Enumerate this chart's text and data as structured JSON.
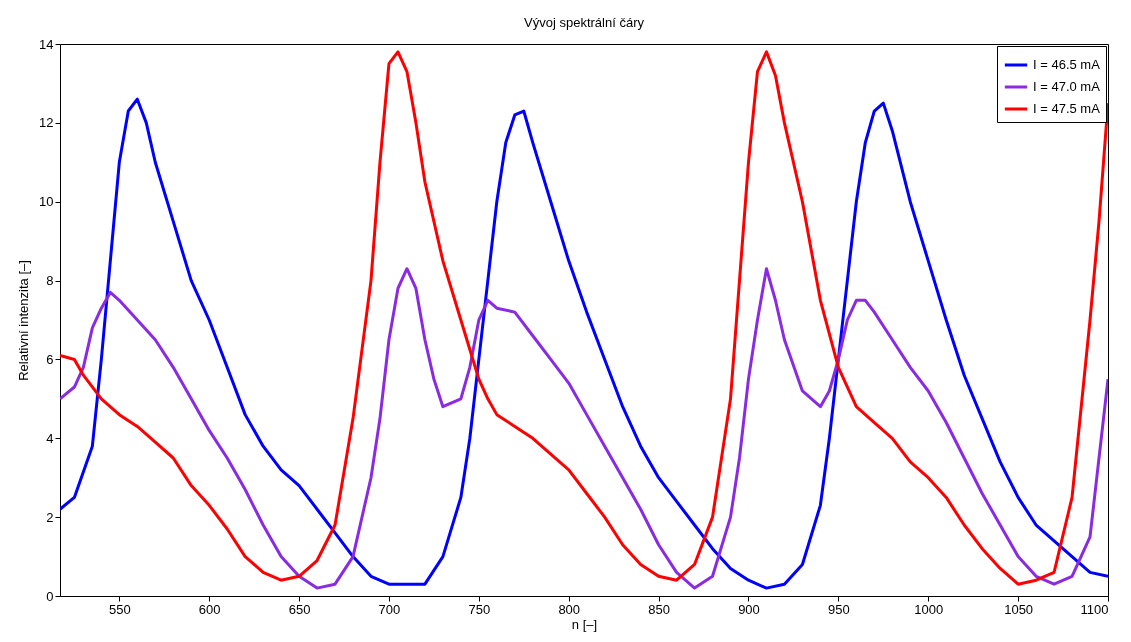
{
  "chart_data": {
    "type": "line",
    "title": "Vývoj spektrální čáry",
    "xlabel": "n [–]",
    "ylabel": "Relativní intenzita [–]",
    "xlim": [
      517,
      1100
    ],
    "ylim": [
      0,
      14
    ],
    "xticks": [
      550,
      600,
      650,
      700,
      750,
      800,
      850,
      900,
      950,
      1000,
      1050,
      1100
    ],
    "yticks": [
      0,
      2,
      4,
      6,
      8,
      10,
      12,
      14
    ],
    "legend": "top right",
    "line_style": "solid",
    "series": [
      {
        "name": "I = 46.5 mA",
        "color": "#0000ff",
        "x": [
          517,
          525,
          535,
          540,
          545,
          550,
          555,
          560,
          565,
          570,
          580,
          590,
          600,
          610,
          620,
          630,
          640,
          650,
          660,
          670,
          680,
          690,
          700,
          710,
          720,
          730,
          740,
          745,
          750,
          755,
          760,
          765,
          770,
          775,
          780,
          790,
          800,
          810,
          820,
          830,
          840,
          850,
          860,
          870,
          880,
          890,
          900,
          910,
          920,
          930,
          940,
          945,
          950,
          955,
          960,
          965,
          970,
          975,
          980,
          990,
          1000,
          1010,
          1020,
          1030,
          1040,
          1050,
          1060,
          1070,
          1080,
          1090,
          1100
        ],
        "values": [
          2.2,
          2.5,
          3.8,
          6,
          8.5,
          11,
          12.3,
          12.6,
          12,
          11,
          9.5,
          8,
          7,
          5.8,
          4.6,
          3.8,
          3.2,
          2.8,
          2.2,
          1.6,
          1.0,
          0.5,
          0.3,
          0.3,
          0.3,
          1,
          2.5,
          4,
          6,
          8,
          10,
          11.5,
          12.2,
          12.3,
          11.5,
          10,
          8.5,
          7.2,
          6,
          4.8,
          3.8,
          3,
          2.4,
          1.8,
          1.2,
          0.7,
          0.4,
          0.2,
          0.3,
          0.8,
          2.3,
          4,
          6,
          8,
          10,
          11.5,
          12.3,
          12.5,
          11.8,
          10,
          8.5,
          7,
          5.6,
          4.5,
          3.4,
          2.5,
          1.8,
          1.4,
          1.0,
          0.6,
          0.5
        ]
      },
      {
        "name": "I = 47.0 mA",
        "color": "#8a2be2",
        "x": [
          517,
          525,
          530,
          535,
          540,
          545,
          550,
          560,
          570,
          580,
          590,
          600,
          610,
          620,
          630,
          640,
          650,
          660,
          670,
          680,
          690,
          695,
          700,
          705,
          710,
          715,
          720,
          725,
          730,
          740,
          745,
          750,
          755,
          760,
          770,
          780,
          790,
          800,
          810,
          820,
          830,
          840,
          850,
          860,
          870,
          880,
          890,
          895,
          900,
          905,
          910,
          915,
          920,
          930,
          940,
          945,
          950,
          955,
          960,
          965,
          970,
          980,
          990,
          1000,
          1010,
          1020,
          1030,
          1040,
          1050,
          1060,
          1070,
          1080,
          1090,
          1100
        ],
        "values": [
          5.0,
          5.3,
          5.8,
          6.8,
          7.3,
          7.7,
          7.5,
          7,
          6.5,
          5.8,
          5,
          4.2,
          3.5,
          2.7,
          1.8,
          1.0,
          0.5,
          0.2,
          0.3,
          1,
          3,
          4.5,
          6.5,
          7.8,
          8.3,
          7.8,
          6.5,
          5.5,
          4.8,
          5,
          5.8,
          7,
          7.5,
          7.3,
          7.2,
          6.6,
          6,
          5.4,
          4.6,
          3.8,
          3,
          2.2,
          1.3,
          0.6,
          0.2,
          0.5,
          2,
          3.5,
          5.5,
          7,
          8.3,
          7.5,
          6.5,
          5.2,
          4.8,
          5.2,
          6,
          7,
          7.5,
          7.5,
          7.2,
          6.5,
          5.8,
          5.2,
          4.4,
          3.5,
          2.6,
          1.8,
          1,
          0.5,
          0.3,
          0.5,
          1.5,
          5.5
        ]
      },
      {
        "name": "I = 47.5 mA",
        "color": "#ff0000",
        "x": [
          517,
          525,
          530,
          540,
          550,
          560,
          570,
          580,
          590,
          600,
          610,
          620,
          630,
          640,
          650,
          660,
          670,
          680,
          690,
          695,
          700,
          705,
          710,
          715,
          720,
          730,
          740,
          750,
          755,
          760,
          770,
          780,
          790,
          800,
          810,
          820,
          830,
          840,
          850,
          860,
          870,
          880,
          890,
          895,
          900,
          905,
          910,
          915,
          920,
          930,
          940,
          950,
          960,
          970,
          980,
          990,
          1000,
          1010,
          1020,
          1030,
          1040,
          1050,
          1060,
          1070,
          1080,
          1090,
          1095,
          1100
        ],
        "values": [
          6.1,
          6,
          5.6,
          5,
          4.6,
          4.3,
          3.9,
          3.5,
          2.8,
          2.3,
          1.7,
          1,
          0.6,
          0.4,
          0.5,
          0.9,
          1.8,
          4.5,
          8,
          11,
          13.5,
          13.8,
          13.3,
          12,
          10.5,
          8.5,
          7,
          5.5,
          5,
          4.6,
          4.3,
          4,
          3.6,
          3.2,
          2.6,
          2,
          1.3,
          0.8,
          0.5,
          0.4,
          0.8,
          2,
          5,
          8,
          11,
          13.3,
          13.8,
          13.2,
          12,
          10,
          7.5,
          5.8,
          4.8,
          4.4,
          4,
          3.4,
          3,
          2.5,
          1.8,
          1.2,
          0.7,
          0.3,
          0.4,
          0.6,
          2.5,
          7,
          9.5,
          12.5
        ]
      }
    ]
  }
}
